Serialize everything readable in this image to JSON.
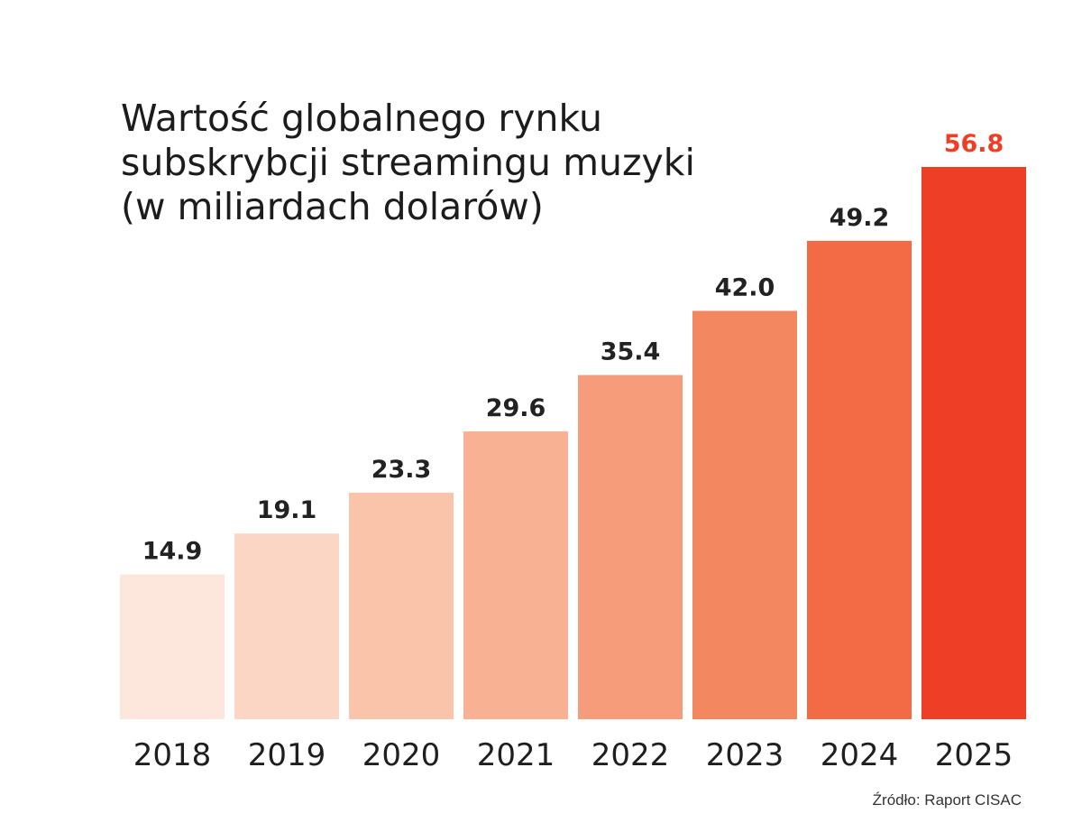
{
  "chart_data": {
    "type": "bar",
    "title_lines": [
      "Wartość globalnego rynku",
      "subskrybcji streamingu muzyki",
      "(w miliardach dolarów)"
    ],
    "categories": [
      "2018",
      "2019",
      "2020",
      "2021",
      "2022",
      "2023",
      "2024",
      "2025"
    ],
    "values": [
      14.9,
      19.1,
      23.3,
      29.6,
      35.4,
      42.0,
      49.2,
      56.8
    ],
    "value_labels": [
      "14.9",
      "19.1",
      "23.3",
      "29.6",
      "35.4",
      "42.0",
      "49.2",
      "56.8"
    ],
    "bar_colors": [
      "#fde7dc",
      "#fbd6c4",
      "#fac4ab",
      "#f8b193",
      "#f69c7a",
      "#f38760",
      "#f26b45",
      "#ee3f26"
    ],
    "label_colors": [
      "#222222",
      "#222222",
      "#222222",
      "#222222",
      "#222222",
      "#222222",
      "#222222",
      "#ee3f26"
    ],
    "xlabel": "",
    "ylabel": "",
    "ylim": [
      0,
      56.8
    ],
    "grid": false,
    "legend": "none"
  },
  "source": "Źródło: Raport CISAC"
}
